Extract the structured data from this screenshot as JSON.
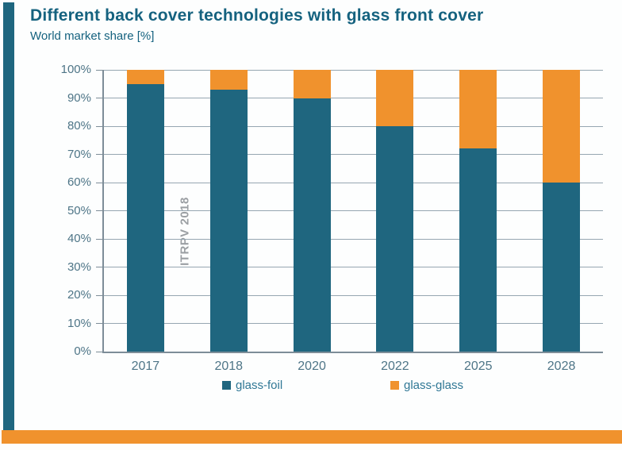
{
  "slide": {
    "title": "Different back cover technologies with glass front cover",
    "subtitle": "World market share [%]",
    "watermark": "ITRPV 2018"
  },
  "colors": {
    "teal": "#1f667f",
    "orange": "#f0922d",
    "title_text": "#15627f",
    "axis_text": "#4e7587",
    "legend_text": "#2f7795",
    "watermark_text": "#9b9fa3"
  },
  "chart_data": {
    "type": "bar",
    "stacked": true,
    "title": "Different back cover technologies with glass front cover",
    "ylabel": "World market share [%]",
    "categories": [
      "2017",
      "2018",
      "2020",
      "2022",
      "2025",
      "2028"
    ],
    "series": [
      {
        "name": "glass-foil",
        "color_key": "teal",
        "values": [
          95,
          93,
          90,
          80,
          72,
          60
        ]
      },
      {
        "name": "glass-glass",
        "color_key": "orange",
        "values": [
          5,
          7,
          10,
          20,
          28,
          40
        ]
      }
    ],
    "ylim": [
      0,
      100
    ],
    "ytick_step": 10,
    "ytick_labels": [
      "0%",
      "10%",
      "20%",
      "30%",
      "40%",
      "50%",
      "60%",
      "70%",
      "80%",
      "90%",
      "100%"
    ],
    "grid": "horizontal",
    "legend_position": "bottom",
    "annotations": [
      "ITRPV 2018"
    ]
  },
  "legend": {
    "items": [
      {
        "label": "glass-foil",
        "color_key": "teal"
      },
      {
        "label": "glass-glass",
        "color_key": "orange"
      }
    ]
  }
}
